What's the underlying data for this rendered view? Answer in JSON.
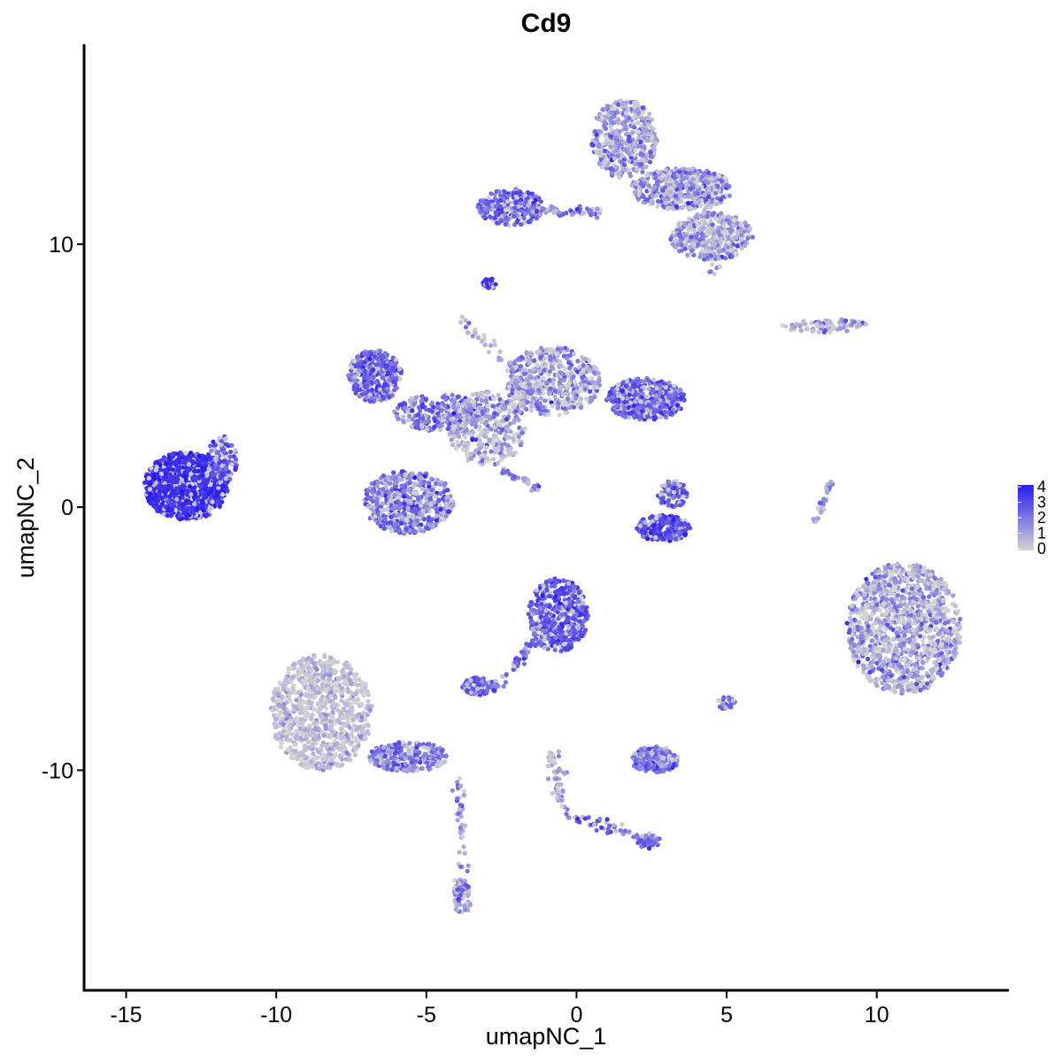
{
  "chart_data": {
    "type": "scatter",
    "title": "Cd9",
    "xlabel": "umapNC_1",
    "ylabel": "umapNC_2",
    "xlim": [
      -16.4,
      14.4
    ],
    "ylim": [
      -18.4,
      17.6
    ],
    "x_ticks": [
      -15,
      -10,
      -5,
      0,
      5,
      10
    ],
    "x_tick_labels": [
      "-15",
      "-10",
      "-5",
      "0",
      "5",
      "10"
    ],
    "y_ticks": [
      -10,
      0,
      10
    ],
    "y_tick_labels": [
      "-10",
      "0",
      "10"
    ],
    "grid": false,
    "legend": {
      "type": "colorbar",
      "position": "right",
      "min": 0,
      "max": 4,
      "ticks": [
        "4",
        "3",
        "2",
        "1",
        "0"
      ],
      "color_low": "#d3d3d3",
      "color_high": "#2a1cf0"
    },
    "colors": {
      "low": "#d3d3d3",
      "high": "#2a1cf0",
      "axis": "#000000"
    },
    "clusters": [
      {
        "name": "c1",
        "cx": -13.0,
        "cy": 0.8,
        "rx": 1.4,
        "ry": 1.3,
        "n": 900,
        "expr": 3.6,
        "spread": 0.3
      },
      {
        "name": "c1b",
        "cx": -11.8,
        "cy": 1.8,
        "rx": 0.5,
        "ry": 0.9,
        "n": 120,
        "expr": 2.8,
        "spread": 0.5
      },
      {
        "name": "c2",
        "cx": -6.7,
        "cy": 5.0,
        "rx": 0.9,
        "ry": 1.0,
        "n": 350,
        "expr": 2.6,
        "spread": 0.6
      },
      {
        "name": "c3",
        "cx": -4.6,
        "cy": 3.6,
        "rx": 1.5,
        "ry": 0.7,
        "n": 250,
        "expr": 2.2,
        "spread": 0.8
      },
      {
        "name": "c4",
        "cx": -5.6,
        "cy": 0.2,
        "rx": 1.5,
        "ry": 1.2,
        "n": 500,
        "expr": 1.9,
        "spread": 1.0
      },
      {
        "name": "c5",
        "cx": -3.0,
        "cy": 3.0,
        "rx": 1.3,
        "ry": 1.4,
        "n": 350,
        "expr": 1.0,
        "spread": 1.0
      },
      {
        "name": "c6",
        "cx": -0.8,
        "cy": 4.8,
        "rx": 1.6,
        "ry": 1.3,
        "n": 500,
        "expr": 1.3,
        "spread": 1.0
      },
      {
        "name": "c7",
        "cx": 2.3,
        "cy": 4.1,
        "rx": 1.3,
        "ry": 0.8,
        "n": 450,
        "expr": 2.5,
        "spread": 0.7
      },
      {
        "name": "c8",
        "cx": 1.6,
        "cy": 14.0,
        "rx": 1.1,
        "ry": 1.5,
        "n": 450,
        "expr": 1.2,
        "spread": 1.0
      },
      {
        "name": "c9",
        "cx": 3.5,
        "cy": 12.1,
        "rx": 1.7,
        "ry": 0.8,
        "n": 450,
        "expr": 1.4,
        "spread": 1.0
      },
      {
        "name": "c10",
        "cx": 4.5,
        "cy": 10.3,
        "rx": 1.4,
        "ry": 0.9,
        "n": 350,
        "expr": 1.1,
        "spread": 1.0
      },
      {
        "name": "c11",
        "cx": -2.2,
        "cy": 11.4,
        "rx": 1.1,
        "ry": 0.7,
        "n": 250,
        "expr": 2.5,
        "spread": 0.7
      },
      {
        "name": "c12",
        "cx": -2.9,
        "cy": 8.5,
        "rx": 0.25,
        "ry": 0.2,
        "n": 25,
        "expr": 3.5,
        "spread": 0.2
      },
      {
        "name": "c13",
        "cx": 10.9,
        "cy": -4.6,
        "rx": 1.9,
        "ry": 2.5,
        "n": 1200,
        "expr": 1.0,
        "spread": 1.0
      },
      {
        "name": "c14",
        "cx": -8.5,
        "cy": -7.8,
        "rx": 1.7,
        "ry": 2.2,
        "n": 900,
        "expr": 0.4,
        "spread": 0.6
      },
      {
        "name": "c15",
        "cx": -5.6,
        "cy": -9.5,
        "rx": 1.3,
        "ry": 0.6,
        "n": 250,
        "expr": 2.0,
        "spread": 0.8
      },
      {
        "name": "c16",
        "cx": -0.6,
        "cy": -4.1,
        "rx": 1.0,
        "ry": 1.4,
        "n": 450,
        "expr": 2.8,
        "spread": 0.6
      },
      {
        "name": "c17",
        "cx": -3.2,
        "cy": -6.8,
        "rx": 0.6,
        "ry": 0.35,
        "n": 120,
        "expr": 2.7,
        "spread": 0.6
      },
      {
        "name": "c18",
        "cx": 2.9,
        "cy": -0.8,
        "rx": 0.9,
        "ry": 0.5,
        "n": 220,
        "expr": 3.0,
        "spread": 0.5
      },
      {
        "name": "c19",
        "cx": 3.2,
        "cy": 0.5,
        "rx": 0.5,
        "ry": 0.5,
        "n": 90,
        "expr": 2.5,
        "spread": 0.6
      },
      {
        "name": "c20",
        "cx": 2.6,
        "cy": -9.6,
        "rx": 0.8,
        "ry": 0.5,
        "n": 200,
        "expr": 2.1,
        "spread": 0.7
      },
      {
        "name": "c21",
        "cx": -3.8,
        "cy": -14.8,
        "rx": 0.3,
        "ry": 0.7,
        "n": 70,
        "expr": 1.6,
        "spread": 0.8
      },
      {
        "name": "c22",
        "cx": 8.3,
        "cy": 6.9,
        "rx": 1.5,
        "ry": 0.25,
        "n": 80,
        "expr": 1.0,
        "spread": 1.0
      },
      {
        "name": "c23",
        "cx": 5.0,
        "cy": -7.4,
        "rx": 0.3,
        "ry": 0.3,
        "n": 25,
        "expr": 2.3,
        "spread": 0.6
      },
      {
        "name": "c24",
        "cx": 2.4,
        "cy": -12.7,
        "rx": 0.4,
        "ry": 0.25,
        "n": 40,
        "expr": 2.3,
        "spread": 0.6
      }
    ],
    "streaks": [
      {
        "x1": -1.5,
        "y1": 11.3,
        "x2": 0.9,
        "y2": 11.2,
        "n": 60,
        "expr": 2.0,
        "w": 0.2
      },
      {
        "x1": -2.5,
        "y1": -6.6,
        "x2": -1.2,
        "y2": -4.8,
        "n": 50,
        "expr": 2.5,
        "w": 0.2
      },
      {
        "x1": -1.2,
        "y1": 4.5,
        "x2": -4.1,
        "y2": 7.3,
        "n": 40,
        "expr": 1.0,
        "w": 0.25
      },
      {
        "x1": -2.6,
        "y1": 1.5,
        "x2": -1.2,
        "y2": 0.7,
        "n": 30,
        "expr": 1.8,
        "w": 0.15
      },
      {
        "x1": -0.8,
        "y1": -9.3,
        "x2": -0.5,
        "y2": -11.6,
        "n": 50,
        "expr": 0.8,
        "w": 0.25
      },
      {
        "x1": -0.5,
        "y1": -11.6,
        "x2": 2.4,
        "y2": -12.6,
        "n": 50,
        "expr": 2.4,
        "w": 0.2
      },
      {
        "x1": -3.9,
        "y1": -10.3,
        "x2": -3.8,
        "y2": -14.5,
        "n": 45,
        "expr": 1.6,
        "w": 0.2
      },
      {
        "x1": 8.5,
        "y1": 1.0,
        "x2": 7.9,
        "y2": -0.7,
        "n": 30,
        "expr": 1.4,
        "w": 0.1
      },
      {
        "x1": 4.2,
        "y1": 12.0,
        "x2": 4.6,
        "y2": 8.8,
        "n": 40,
        "expr": 1.0,
        "w": 0.3
      }
    ],
    "seed": 9
  }
}
